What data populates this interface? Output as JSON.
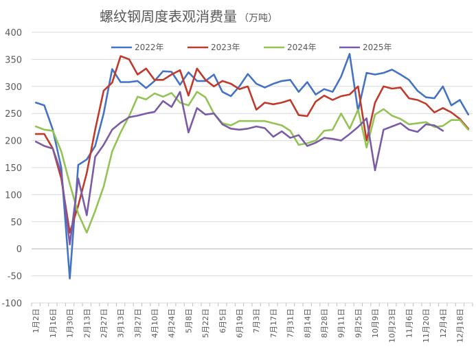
{
  "chart_data": {
    "type": "line",
    "title": "螺纹钢周度表观消费量",
    "title_unit": "（万吨）",
    "ylim": [
      -100,
      400
    ],
    "yticks": [
      -100,
      -50,
      0,
      50,
      100,
      150,
      200,
      250,
      300,
      350,
      400
    ],
    "grid": "horizontal",
    "legend_position": "top-right",
    "x_tick_labels": [
      "1月2日",
      "1月16日",
      "1月30日",
      "2月13日",
      "2月27日",
      "3月13日",
      "3月27日",
      "4月10日",
      "4月24日",
      "5月8日",
      "5月22日",
      "6月5日",
      "6月19日",
      "7月3日",
      "7月17日",
      "7月31日",
      "8月14日",
      "8月28日",
      "9月11日",
      "9月25日",
      "10月9日",
      "10月23日",
      "11月6日",
      "11月20日",
      "12月4日",
      "12月18日"
    ],
    "colors": {
      "2022年": "#4472C4",
      "2023年": "#C0392B",
      "2024年": "#92C353",
      "2025年": "#7B5BA6"
    },
    "series": [
      {
        "name": "2022年",
        "values": [
          270,
          265,
          220,
          150,
          -55,
          155,
          165,
          190,
          250,
          332,
          308,
          308,
          310,
          297,
          310,
          328,
          327,
          303,
          326,
          310,
          310,
          322,
          290,
          282,
          300,
          323,
          305,
          298,
          305,
          310,
          312,
          290,
          308,
          285,
          295,
          290,
          318,
          360,
          255,
          325,
          322,
          325,
          331,
          322,
          312,
          292,
          280,
          278,
          300,
          265,
          275,
          248
        ]
      },
      {
        "name": "2023年",
        "values": [
          212,
          212,
          185,
          130,
          30,
          80,
          140,
          220,
          292,
          307,
          356,
          350,
          322,
          333,
          312,
          312,
          322,
          330,
          283,
          333,
          312,
          300,
          310,
          305,
          295,
          300,
          257,
          270,
          267,
          270,
          275,
          247,
          245,
          272,
          283,
          275,
          282,
          285,
          300,
          200,
          270,
          300,
          296,
          298,
          278,
          275,
          268,
          252,
          260,
          252,
          240,
          222
        ]
      },
      {
        "name": "2024年",
        "values": [
          226,
          220,
          218,
          180,
          120,
          65,
          30,
          70,
          115,
          180,
          215,
          245,
          281,
          276,
          287,
          281,
          288,
          270,
          265,
          290,
          280,
          250,
          232,
          228,
          236,
          236,
          236,
          236,
          232,
          228,
          218,
          192,
          195,
          200,
          218,
          220,
          250,
          222,
          257,
          187,
          248,
          258,
          246,
          240,
          230,
          232,
          234,
          225,
          227,
          238,
          238,
          220
        ]
      },
      {
        "name": "2025年",
        "values": [
          198,
          190,
          185,
          140,
          8,
          130,
          62,
          170,
          192,
          220,
          233,
          243,
          246,
          250,
          253,
          273,
          262,
          290,
          215,
          260,
          248,
          250,
          230,
          222,
          220,
          222,
          226,
          223,
          207,
          217,
          205,
          210,
          190,
          196,
          205,
          203,
          200,
          212,
          225,
          241,
          145,
          220,
          226,
          232,
          220,
          216,
          230,
          228,
          218
        ]
      }
    ]
  }
}
